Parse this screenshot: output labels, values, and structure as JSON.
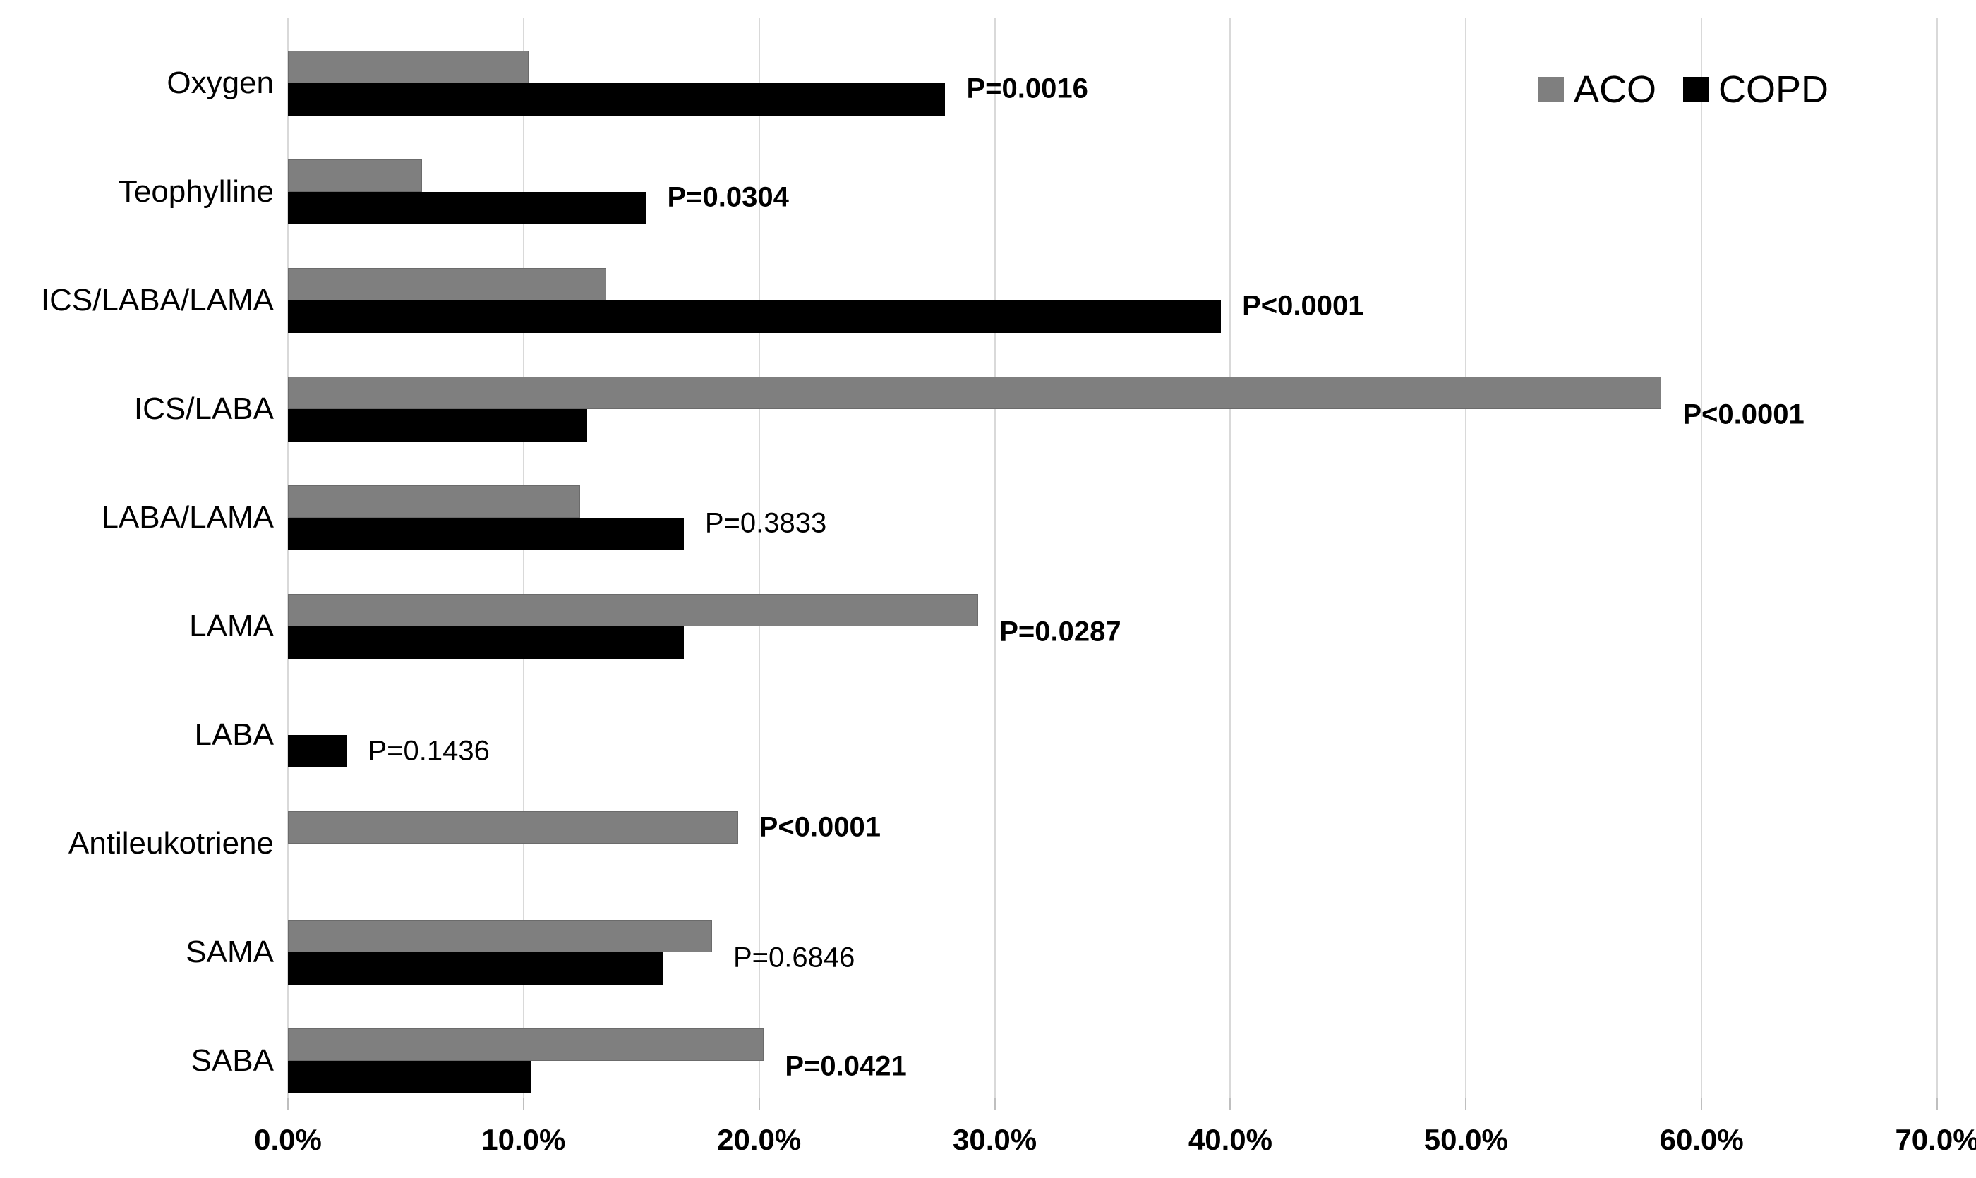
{
  "chart_data": {
    "type": "bar",
    "orientation": "horizontal",
    "title": "",
    "categories": [
      "Oxygen",
      "Teophylline",
      "ICS/LABA/LAMA",
      "ICS/LABA",
      "LABA/LAMA",
      "LAMA",
      "LABA",
      "Antileukotriene",
      "SAMA",
      "SABA"
    ],
    "series": [
      {
        "name": "ACO",
        "color": "#7f7f7f",
        "values": [
          10.2,
          5.7,
          13.5,
          58.3,
          12.4,
          29.3,
          0,
          19.1,
          18.0,
          20.2
        ]
      },
      {
        "name": "COPD",
        "color": "#000000",
        "values": [
          27.9,
          15.2,
          39.6,
          12.7,
          16.8,
          16.8,
          2.5,
          0,
          15.9,
          10.3
        ]
      }
    ],
    "values_unit": "%",
    "p_values": [
      {
        "label": "P=0.0016",
        "bold": true
      },
      {
        "label": "P=0.0304",
        "bold": true
      },
      {
        "label": "P<0.0001",
        "bold": true
      },
      {
        "label": "P<0.0001",
        "bold": true
      },
      {
        "label": "P=0.3833",
        "bold": false
      },
      {
        "label": "P=0.0287",
        "bold": true
      },
      {
        "label": "P=0.1436",
        "bold": false
      },
      {
        "label": "P<0.0001",
        "bold": true
      },
      {
        "label": "P=0.6846",
        "bold": false
      },
      {
        "label": "P=0.0421",
        "bold": true
      }
    ],
    "x_axis": {
      "min": 0,
      "max": 70,
      "tick_step": 10,
      "tick_labels": [
        "0.0%",
        "10.0%",
        "20.0%",
        "30.0%",
        "40.0%",
        "50.0%",
        "60.0%",
        "70.0%"
      ]
    },
    "legend": {
      "position": "top-right",
      "entries": [
        {
          "label": "ACO",
          "color": "#7f7f7f"
        },
        {
          "label": "COPD",
          "color": "#000000"
        }
      ]
    },
    "grid": {
      "show": true,
      "color": "#d9d9d9"
    },
    "background": "#ffffff"
  }
}
